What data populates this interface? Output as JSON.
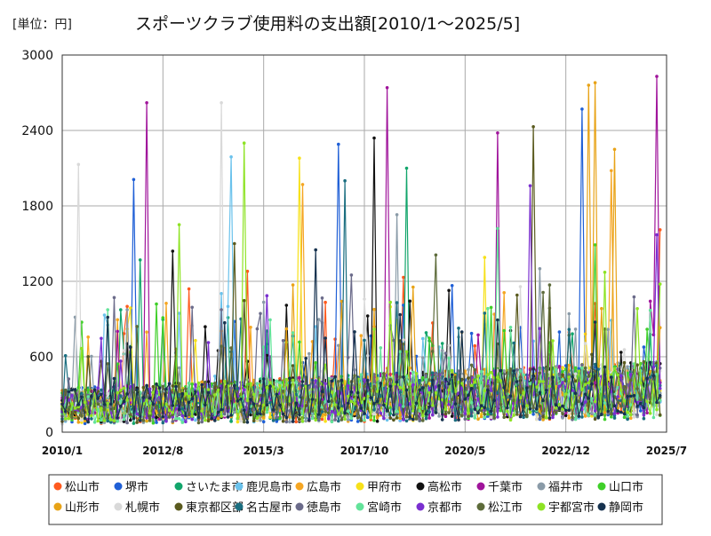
{
  "chart_data": {
    "type": "line",
    "unit_label": "[単位：円]",
    "title": "スポーツクラブ使用料の支出額[2010/1～2025/5]",
    "ylim": [
      0,
      3000
    ],
    "yticks": [
      "0",
      "600",
      "1200",
      "1800",
      "2400",
      "3000"
    ],
    "xlim": [
      "2010/1",
      "2025/7"
    ],
    "xticks": [
      "2010/1",
      "2012/8",
      "2015/3",
      "2017/10",
      "2020/5",
      "2022/12",
      "2025/7"
    ],
    "grid": true,
    "legend_position": "bottom",
    "series": [
      {
        "name": "松山市",
        "color": "#ff5a1f",
        "peaks": [
          {
            "x": "2011/9",
            "y": 1000
          },
          {
            "x": "2014/10",
            "y": 1280
          },
          {
            "x": "2025/5",
            "y": 1610
          }
        ]
      },
      {
        "name": "堺市",
        "color": "#1f5fd6",
        "peaks": [
          {
            "x": "2011/11",
            "y": 2010
          },
          {
            "x": "2017/2",
            "y": 2290
          },
          {
            "x": "2023/5",
            "y": 2570
          }
        ]
      },
      {
        "name": "さいたま市",
        "color": "#12a56b",
        "peaks": [
          {
            "x": "2012/1",
            "y": 1370
          },
          {
            "x": "2018/11",
            "y": 2100
          }
        ]
      },
      {
        "name": "鹿児島市",
        "color": "#6ac2ec",
        "peaks": [
          {
            "x": "2014/5",
            "y": 2190
          }
        ]
      },
      {
        "name": "広島市",
        "color": "#f5a623",
        "peaks": [
          {
            "x": "2016/3",
            "y": 1970
          },
          {
            "x": "2024/2",
            "y": 2080
          }
        ]
      },
      {
        "name": "甲府市",
        "color": "#f7e11a",
        "peaks": [
          {
            "x": "2016/2",
            "y": 2180
          },
          {
            "x": "2020/11",
            "y": 1390
          }
        ]
      },
      {
        "name": "高松市",
        "color": "#111111",
        "peaks": [
          {
            "x": "2018/1",
            "y": 2340
          },
          {
            "x": "2012/11",
            "y": 1440
          }
        ]
      },
      {
        "name": "千葉市",
        "color": "#a0149b",
        "peaks": [
          {
            "x": "2012/3",
            "y": 2620
          },
          {
            "x": "2018/5",
            "y": 2740
          },
          {
            "x": "2021/3",
            "y": 2380
          },
          {
            "x": "2025/4",
            "y": 2830
          }
        ]
      },
      {
        "name": "福井市",
        "color": "#8a9ba8",
        "peaks": [
          {
            "x": "2018/8",
            "y": 1730
          }
        ]
      },
      {
        "name": "山口市",
        "color": "#3fcf28",
        "peaks": [
          {
            "x": "2023/9",
            "y": 1490
          }
        ]
      },
      {
        "name": "山形市",
        "color": "#e8a317",
        "peaks": [
          {
            "x": "2023/7",
            "y": 2760
          },
          {
            "x": "2023/9",
            "y": 2780
          },
          {
            "x": "2024/3",
            "y": 2250
          }
        ]
      },
      {
        "name": "札幌市",
        "color": "#d9d9d9",
        "peaks": [
          {
            "x": "2010/6",
            "y": 2130
          },
          {
            "x": "2014/2",
            "y": 2620
          }
        ]
      },
      {
        "name": "東京都区部",
        "color": "#5a5a1e",
        "peaks": [
          {
            "x": "2022/2",
            "y": 2430
          },
          {
            "x": "2014/6",
            "y": 1500
          }
        ]
      },
      {
        "name": "名古屋市",
        "color": "#1b6e80",
        "peaks": [
          {
            "x": "2017/4",
            "y": 2000
          }
        ]
      },
      {
        "name": "徳島市",
        "color": "#6b6b8a",
        "peaks": [
          {
            "x": "2017/6",
            "y": 1250
          }
        ]
      },
      {
        "name": "宮崎市",
        "color": "#63e39a",
        "peaks": [
          {
            "x": "2021/3",
            "y": 1620
          }
        ]
      },
      {
        "name": "京都市",
        "color": "#7a2fd0",
        "peaks": [
          {
            "x": "2022/1",
            "y": 1960
          },
          {
            "x": "2025/4",
            "y": 1570
          }
        ]
      },
      {
        "name": "松江市",
        "color": "#5d6b3a",
        "peaks": [
          {
            "x": "2019/8",
            "y": 1410
          }
        ]
      },
      {
        "name": "宇都宮市",
        "color": "#8ee324",
        "peaks": [
          {
            "x": "2014/9",
            "y": 2300
          },
          {
            "x": "2013/1",
            "y": 1650
          }
        ]
      },
      {
        "name": "静岡市",
        "color": "#16324f",
        "peaks": [
          {
            "x": "2016/7",
            "y": 1450
          }
        ]
      }
    ]
  }
}
